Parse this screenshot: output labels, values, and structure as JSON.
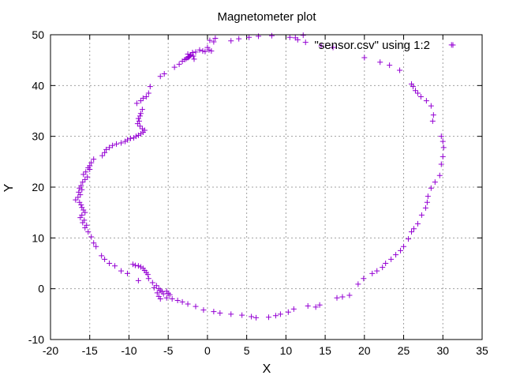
{
  "chart_data": {
    "type": "scatter",
    "title": "Magnetometer plot",
    "xlabel": "X",
    "ylabel": "Y",
    "xlim": [
      -20,
      35
    ],
    "ylim": [
      -10,
      50
    ],
    "xticks": [
      -20,
      -15,
      -10,
      -5,
      0,
      5,
      10,
      15,
      20,
      25,
      30,
      35
    ],
    "yticks": [
      -10,
      0,
      10,
      20,
      30,
      40,
      50
    ],
    "grid": true,
    "legend_position": "top-right",
    "series": [
      {
        "name": "\"sensor.csv\" using 1:2",
        "color": "#9400d3",
        "marker": "plus",
        "points": [
          [
            8.2,
            49.8
          ],
          [
            6.5,
            49.7
          ],
          [
            5.3,
            49.5
          ],
          [
            4.0,
            49.2
          ],
          [
            3.0,
            48.8
          ],
          [
            1.0,
            49.3
          ],
          [
            0.8,
            48.6
          ],
          [
            0.3,
            48.9
          ],
          [
            0.0,
            47.5
          ],
          [
            0.2,
            47.0
          ],
          [
            0.5,
            46.8
          ],
          [
            -0.3,
            46.7
          ],
          [
            -0.6,
            46.8
          ],
          [
            -1.0,
            47.0
          ],
          [
            -1.5,
            46.6
          ],
          [
            -1.9,
            46.5
          ],
          [
            -2.1,
            46.0
          ],
          [
            -2.3,
            45.7
          ],
          [
            -2.5,
            45.5
          ],
          [
            -2.7,
            45.3
          ],
          [
            -2.5,
            46.2
          ],
          [
            -2.2,
            45.9
          ],
          [
            -1.8,
            45.8
          ],
          [
            -1.7,
            45.2
          ],
          [
            -2.4,
            45.6
          ],
          [
            -2.9,
            45.1
          ],
          [
            -3.2,
            44.8
          ],
          [
            -3.6,
            44.2
          ],
          [
            -4.2,
            43.6
          ],
          [
            -5.5,
            42.3
          ],
          [
            -6.0,
            41.8
          ],
          [
            -7.3,
            39.8
          ],
          [
            -7.5,
            38.5
          ],
          [
            -7.8,
            37.8
          ],
          [
            -8.2,
            37.5
          ],
          [
            -8.5,
            37.0
          ],
          [
            -9.0,
            36.5
          ],
          [
            -8.3,
            35.3
          ],
          [
            -8.5,
            34.5
          ],
          [
            -8.6,
            34.0
          ],
          [
            -8.8,
            33.5
          ],
          [
            -8.7,
            33.0
          ],
          [
            -8.9,
            32.5
          ],
          [
            -8.6,
            32.0
          ],
          [
            -8.3,
            31.5
          ],
          [
            -8.0,
            31.2
          ],
          [
            -8.2,
            30.8
          ],
          [
            -8.5,
            30.5
          ],
          [
            -8.8,
            30.2
          ],
          [
            -9.1,
            30.0
          ],
          [
            -9.4,
            29.7
          ],
          [
            -9.8,
            29.6
          ],
          [
            -10.2,
            29.3
          ],
          [
            -10.5,
            29.0
          ],
          [
            -11.0,
            28.7
          ],
          [
            -11.6,
            28.5
          ],
          [
            -12.1,
            28.2
          ],
          [
            -12.5,
            27.8
          ],
          [
            -12.9,
            27.4
          ],
          [
            -13.1,
            26.8
          ],
          [
            -13.4,
            26.2
          ],
          [
            -14.5,
            25.5
          ],
          [
            -14.8,
            24.8
          ],
          [
            -15.0,
            24.2
          ],
          [
            -15.2,
            23.8
          ],
          [
            -15.0,
            23.5
          ],
          [
            -15.5,
            23.0
          ],
          [
            -15.8,
            22.5
          ],
          [
            -15.3,
            22.0
          ],
          [
            -15.6,
            21.5
          ],
          [
            -15.9,
            21.0
          ],
          [
            -16.1,
            20.3
          ],
          [
            -16.3,
            19.8
          ],
          [
            -16.0,
            19.5
          ],
          [
            -16.4,
            19.0
          ],
          [
            -16.2,
            18.5
          ],
          [
            -16.5,
            18.0
          ],
          [
            -16.8,
            17.5
          ],
          [
            -16.3,
            17.0
          ],
          [
            -16.1,
            16.5
          ],
          [
            -16.0,
            16.0
          ],
          [
            -15.8,
            15.5
          ],
          [
            -15.6,
            15.0
          ],
          [
            -16.0,
            14.5
          ],
          [
            -16.2,
            14.0
          ],
          [
            -15.7,
            13.5
          ],
          [
            -15.9,
            13.0
          ],
          [
            -15.4,
            12.5
          ],
          [
            -15.6,
            12.0
          ],
          [
            -15.2,
            11.2
          ],
          [
            -14.8,
            10.2
          ],
          [
            -14.5,
            9.0
          ],
          [
            -14.2,
            8.3
          ],
          [
            -13.5,
            6.5
          ],
          [
            -13.1,
            5.8
          ],
          [
            -12.5,
            5.0
          ],
          [
            -11.8,
            4.5
          ],
          [
            -11.0,
            3.5
          ],
          [
            -10.2,
            3.0
          ],
          [
            -9.5,
            4.8
          ],
          [
            -9.2,
            4.6
          ],
          [
            -8.8,
            4.5
          ],
          [
            -8.5,
            4.3
          ],
          [
            -8.2,
            4.0
          ],
          [
            -8.0,
            3.6
          ],
          [
            -7.8,
            3.2
          ],
          [
            -7.6,
            2.8
          ],
          [
            -7.5,
            2.0
          ],
          [
            -8.8,
            1.6
          ],
          [
            -7.0,
            1.2
          ],
          [
            -6.5,
            0.6
          ],
          [
            -6.8,
            0.2
          ],
          [
            -6.2,
            0.0
          ],
          [
            -6.0,
            -0.3
          ],
          [
            -5.8,
            -0.6
          ],
          [
            -6.4,
            -0.8
          ],
          [
            -5.6,
            -1.0
          ],
          [
            -5.2,
            -0.5
          ],
          [
            -5.0,
            -0.9
          ],
          [
            -4.8,
            -1.2
          ],
          [
            -6.2,
            -1.5
          ],
          [
            -5.2,
            -1.8
          ],
          [
            -6.0,
            -2.0
          ],
          [
            -4.5,
            -2.0
          ],
          [
            -3.8,
            -2.3
          ],
          [
            -3.2,
            -2.6
          ],
          [
            -2.5,
            -3.0
          ],
          [
            -1.5,
            -3.5
          ],
          [
            -0.5,
            -4.2
          ],
          [
            0.8,
            -4.5
          ],
          [
            1.6,
            -4.8
          ],
          [
            3.0,
            -5.0
          ],
          [
            4.4,
            -5.2
          ],
          [
            5.6,
            -5.5
          ],
          [
            6.2,
            -5.7
          ],
          [
            7.8,
            -5.6
          ],
          [
            8.7,
            -5.3
          ],
          [
            9.3,
            -5.0
          ],
          [
            10.3,
            -4.6
          ],
          [
            11.0,
            -4.0
          ],
          [
            12.8,
            -3.4
          ],
          [
            13.8,
            -3.6
          ],
          [
            14.3,
            -3.2
          ],
          [
            16.5,
            -1.8
          ],
          [
            17.2,
            -1.6
          ],
          [
            18.1,
            -1.3
          ],
          [
            19.2,
            0.9
          ],
          [
            19.9,
            2.0
          ],
          [
            21.0,
            3.0
          ],
          [
            21.6,
            3.5
          ],
          [
            22.3,
            4.2
          ],
          [
            22.7,
            5.0
          ],
          [
            23.4,
            5.8
          ],
          [
            24.0,
            6.7
          ],
          [
            24.6,
            7.5
          ],
          [
            25.0,
            8.3
          ],
          [
            25.6,
            9.8
          ],
          [
            26.0,
            11.2
          ],
          [
            26.3,
            11.8
          ],
          [
            26.8,
            12.8
          ],
          [
            27.3,
            14.5
          ],
          [
            27.8,
            15.9
          ],
          [
            28.0,
            17.0
          ],
          [
            28.1,
            18.2
          ],
          [
            28.5,
            19.8
          ],
          [
            29.0,
            21.0
          ],
          [
            29.6,
            22.3
          ],
          [
            29.8,
            24.5
          ],
          [
            30.0,
            26.0
          ],
          [
            30.1,
            27.8
          ],
          [
            30.0,
            29.0
          ],
          [
            29.8,
            30.0
          ],
          [
            28.7,
            33.0
          ],
          [
            28.8,
            34.2
          ],
          [
            28.5,
            36.0
          ],
          [
            27.9,
            37.0
          ],
          [
            27.2,
            37.8
          ],
          [
            26.8,
            38.5
          ],
          [
            26.5,
            39.0
          ],
          [
            26.2,
            39.8
          ],
          [
            26.0,
            40.3
          ],
          [
            24.5,
            43.0
          ],
          [
            23.2,
            44.0
          ],
          [
            22.0,
            44.6
          ],
          [
            20.0,
            45.5
          ],
          [
            16.0,
            47.5
          ],
          [
            14.5,
            47.8
          ],
          [
            12.5,
            48.5
          ],
          [
            11.5,
            49.0
          ],
          [
            10.5,
            49.5
          ],
          [
            11.2,
            49.4
          ],
          [
            12.2,
            49.9
          ],
          [
            31.1,
            48.0
          ]
        ]
      }
    ]
  }
}
